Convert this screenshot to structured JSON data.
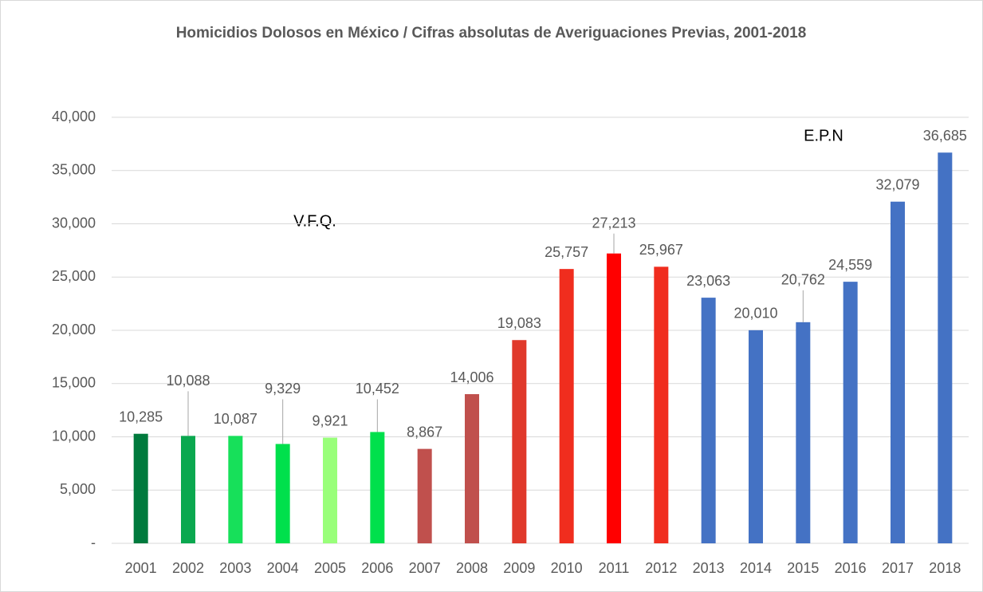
{
  "chart_data": {
    "type": "bar",
    "title": "Homicidios Dolosos en México / Cifras absolutas de Averiguaciones Previas, 2001-2018",
    "categories": [
      "2001",
      "2002",
      "2003",
      "2004",
      "2005",
      "2006",
      "2007",
      "2008",
      "2009",
      "2010",
      "2011",
      "2012",
      "2013",
      "2014",
      "2015",
      "2016",
      "2017",
      "2018"
    ],
    "values": [
      10285,
      10088,
      10087,
      9329,
      9921,
      10452,
      8867,
      14006,
      19083,
      25757,
      27213,
      25967,
      23063,
      20010,
      20762,
      24559,
      32079,
      36685
    ],
    "value_labels": [
      "10,285",
      "10,088",
      "10,087",
      "9,329",
      "9,921",
      "10,452",
      "8,867",
      "14,006",
      "19,083",
      "25,757",
      "27,213",
      "25,967",
      "23,063",
      "20,010",
      "20,762",
      "24,559",
      "32,079",
      "36,685"
    ],
    "colors": [
      "#007a3d",
      "#0aa84f",
      "#17e05a",
      "#00e04c",
      "#99ff7a",
      "#00e04c",
      "#c0504d",
      "#c0504d",
      "#e0392b",
      "#f02d1e",
      "#ff0000",
      "#f02d1e",
      "#4472c4",
      "#4472c4",
      "#4472c4",
      "#4472c4",
      "#4472c4",
      "#4472c4"
    ],
    "ylim": [
      0,
      40000
    ],
    "yticks": [
      {
        "value": 0,
        "label": "-"
      },
      {
        "value": 5000,
        "label": "5,000"
      },
      {
        "value": 10000,
        "label": "10,000"
      },
      {
        "value": 15000,
        "label": "15,000"
      },
      {
        "value": 20000,
        "label": "20,000"
      },
      {
        "value": 25000,
        "label": "25,000"
      },
      {
        "value": 30000,
        "label": "30,000"
      },
      {
        "value": 35000,
        "label": "35,000"
      },
      {
        "value": 40000,
        "label": "40,000"
      }
    ],
    "grid": true,
    "annotations": [
      "V.F.Q.",
      "E.P.N"
    ]
  }
}
